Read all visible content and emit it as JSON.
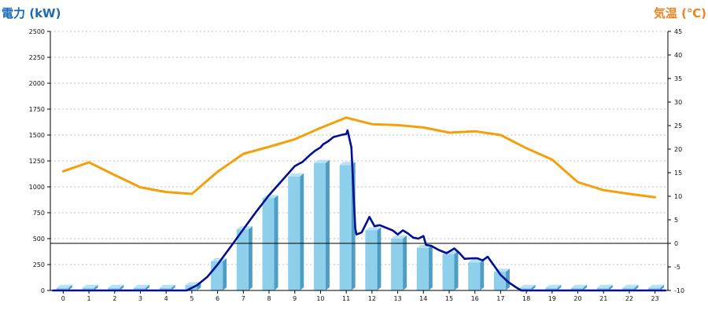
{
  "chart_data": {
    "type": "bar",
    "title": "",
    "y_left_label": "電力 (kW)",
    "y_right_label": "気温 (℃)",
    "categories": [
      "0",
      "1",
      "2",
      "3",
      "4",
      "5",
      "6",
      "7",
      "8",
      "9",
      "10",
      "11",
      "12",
      "13",
      "14",
      "15",
      "16",
      "17",
      "18",
      "19",
      "20",
      "21",
      "22",
      "23"
    ],
    "y_left_range": [
      0,
      2500
    ],
    "y_left_ticks": [
      "0",
      "250",
      "500",
      "750",
      "1000",
      "1250",
      "1500",
      "1750",
      "2000",
      "2250",
      "2500"
    ],
    "y_right_range": [
      -10,
      45
    ],
    "y_right_ticks": [
      "-10",
      "-5",
      "0",
      "5",
      "10",
      "15",
      "20",
      "25",
      "30",
      "35",
      "40",
      "45"
    ],
    "grid": true,
    "reference_line_temperature": 0,
    "series": [
      {
        "type": "bar",
        "axis": "left",
        "values": [
          25,
          25,
          25,
          25,
          25,
          50,
          280,
          590,
          890,
          1100,
          1230,
          1210,
          580,
          500,
          410,
          350,
          270,
          180,
          25,
          25,
          25,
          25,
          25,
          25
        ]
      },
      {
        "type": "line",
        "axis": "left",
        "points": [
          [
            -0.4,
            0
          ],
          [
            4.8,
            0
          ],
          [
            5.2,
            50
          ],
          [
            5.6,
            130
          ],
          [
            6.0,
            250
          ],
          [
            6.5,
            420
          ],
          [
            7.0,
            590
          ],
          [
            7.5,
            760
          ],
          [
            8.0,
            920
          ],
          [
            8.5,
            1060
          ],
          [
            9.0,
            1200
          ],
          [
            9.3,
            1240
          ],
          [
            9.6,
            1310
          ],
          [
            9.8,
            1350
          ],
          [
            10.0,
            1380
          ],
          [
            10.1,
            1410
          ],
          [
            10.3,
            1440
          ],
          [
            10.5,
            1480
          ],
          [
            10.8,
            1500
          ],
          [
            11.0,
            1510
          ],
          [
            11.05,
            1545
          ],
          [
            11.2,
            1380
          ],
          [
            11.35,
            600
          ],
          [
            11.4,
            540
          ],
          [
            11.6,
            560
          ],
          [
            11.9,
            710
          ],
          [
            12.1,
            620
          ],
          [
            12.3,
            630
          ],
          [
            12.5,
            610
          ],
          [
            12.8,
            580
          ],
          [
            13.0,
            540
          ],
          [
            13.2,
            580
          ],
          [
            13.4,
            550
          ],
          [
            13.6,
            510
          ],
          [
            13.8,
            500
          ],
          [
            14.0,
            525
          ],
          [
            14.1,
            440
          ],
          [
            14.3,
            430
          ],
          [
            14.6,
            390
          ],
          [
            14.9,
            360
          ],
          [
            15.2,
            405
          ],
          [
            15.4,
            360
          ],
          [
            15.6,
            305
          ],
          [
            15.9,
            310
          ],
          [
            16.1,
            310
          ],
          [
            16.3,
            290
          ],
          [
            16.5,
            325
          ],
          [
            16.8,
            220
          ],
          [
            17.0,
            150
          ],
          [
            17.3,
            80
          ],
          [
            17.6,
            30
          ],
          [
            17.8,
            0
          ],
          [
            23.4,
            0
          ]
        ]
      },
      {
        "type": "line",
        "axis": "right",
        "values": [
          15.3,
          17.2,
          14.5,
          11.9,
          10.9,
          10.5,
          15.2,
          19.0,
          20.5,
          22.1,
          24.5,
          26.7,
          25.3,
          25.1,
          24.6,
          23.5,
          23.8,
          23.0,
          20.2,
          17.8,
          13.0,
          11.3,
          10.5,
          9.8
        ]
      }
    ],
    "colors": {
      "bar_front": "#8ecfeb",
      "bar_side": "#4e9dc2",
      "bar_top": "#b9e2f4",
      "power_line": "#000f96",
      "temperature_line": "#f5a00a",
      "left_title": "#1a6ab5",
      "right_title": "#f0821e",
      "grid": "#bfbfbf"
    }
  }
}
